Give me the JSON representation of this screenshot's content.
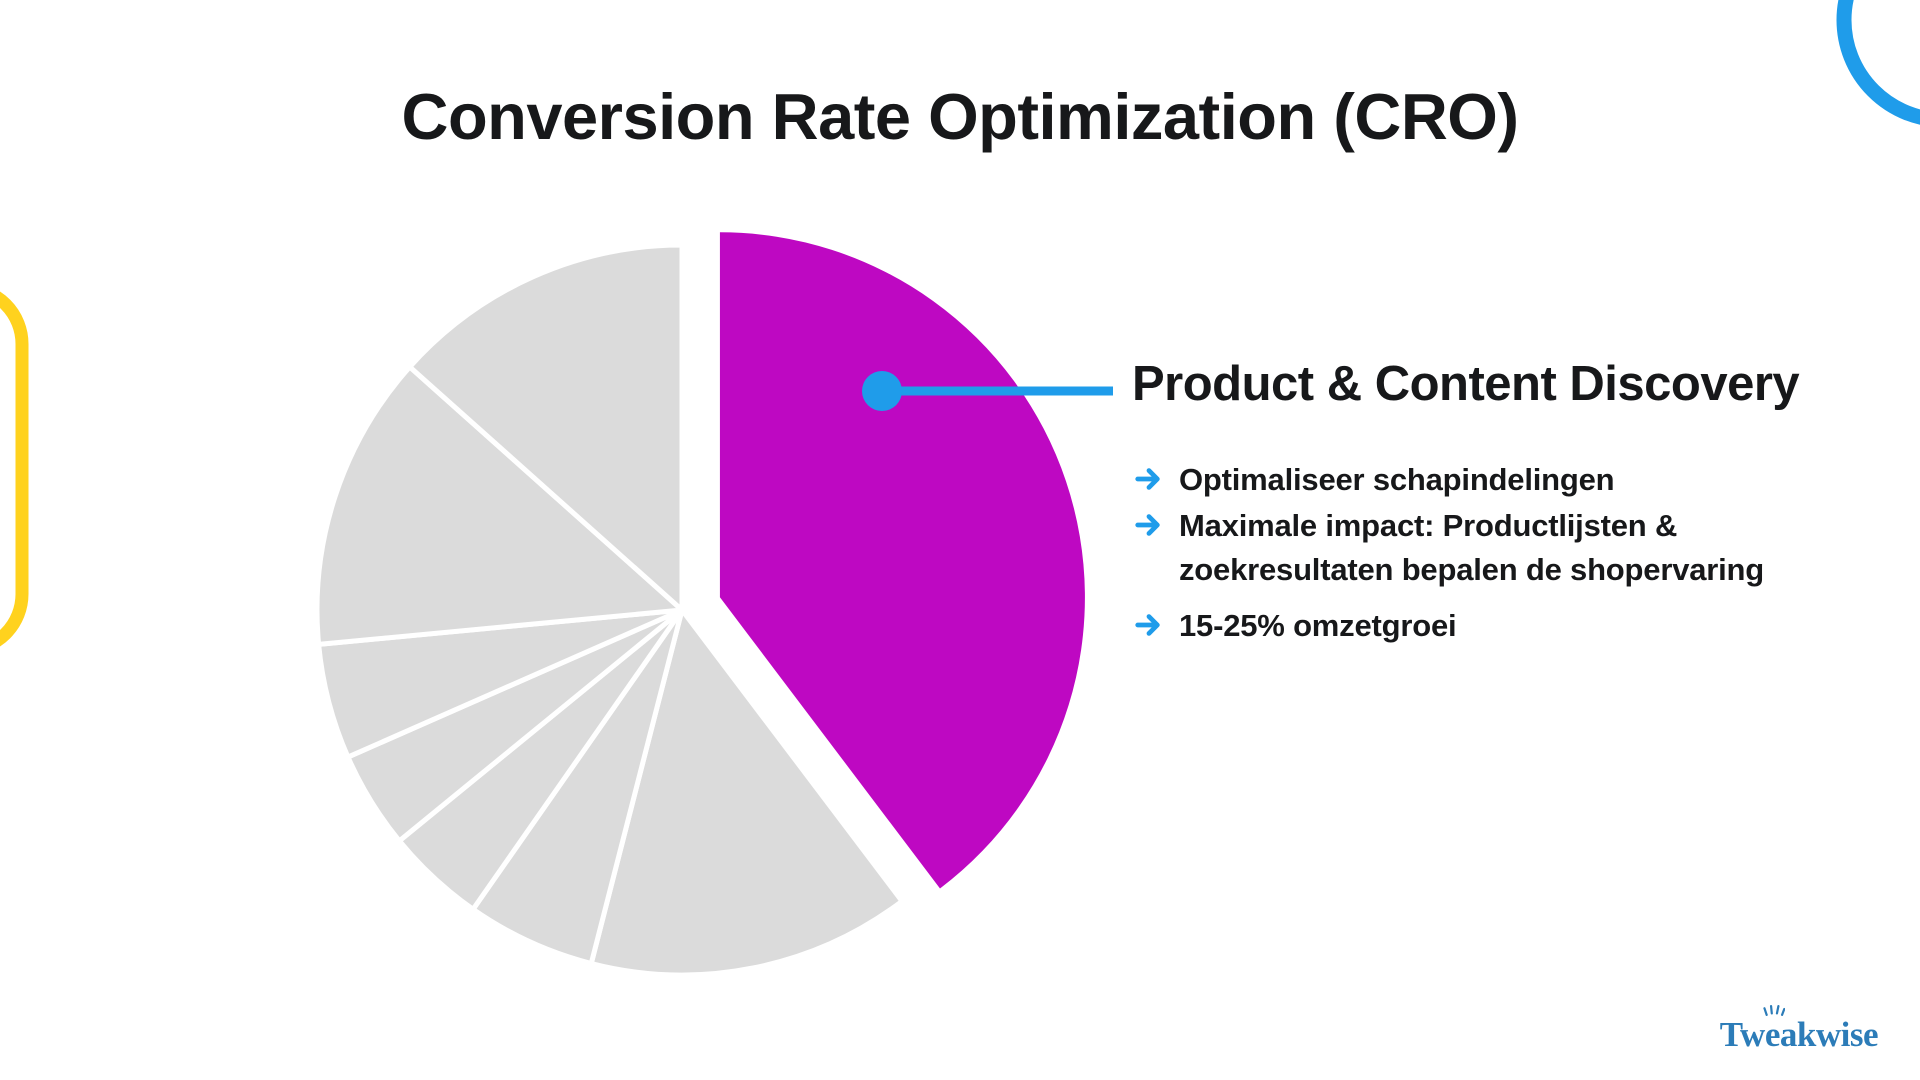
{
  "title": "Conversion Rate Optimization (CRO)",
  "callout": {
    "heading": "Product & Content Discovery",
    "bullets": [
      "Optimaliseer schapindelingen",
      "Maximale impact: Productlijsten & zoekresultaten bepalen de shopervaring",
      "15-25% omzetgroei"
    ],
    "bullet_icon": "arrow-right-icon"
  },
  "logo": {
    "text": "Tweakwise",
    "text_parts": [
      "Tw",
      "e",
      "akwise"
    ]
  },
  "colors": {
    "highlight_magenta": "#BE08C2",
    "slice_gray": "#DBDBDB",
    "accent_blue": "#1F9CEA",
    "logo_blue": "#2C7CB8",
    "deco_yellow": "#FFD21E",
    "text_dark": "#17181A",
    "background": "#FFFFFF"
  },
  "chart_data": {
    "type": "pie",
    "title": "Conversion Rate Optimization (CRO)",
    "start_angle_deg": 0,
    "direction": "clockwise",
    "legend": false,
    "slices": [
      {
        "label": "Product & Content Discovery",
        "value_pct": 39.7,
        "color": "#BE08C2",
        "exploded": true
      },
      {
        "label": "",
        "value_pct": 14.3,
        "color": "#DBDBDB",
        "exploded": false
      },
      {
        "label": "",
        "value_pct": 5.7,
        "color": "#DBDBDB",
        "exploded": false
      },
      {
        "label": "",
        "value_pct": 4.4,
        "color": "#DBDBDB",
        "exploded": false
      },
      {
        "label": "",
        "value_pct": 4.3,
        "color": "#DBDBDB",
        "exploded": false
      },
      {
        "label": "",
        "value_pct": 5.1,
        "color": "#DBDBDB",
        "exploded": false
      },
      {
        "label": "",
        "value_pct": 13.1,
        "color": "#DBDBDB",
        "exploded": false
      },
      {
        "label": "",
        "value_pct": 13.4,
        "color": "#DBDBDB",
        "exploded": false
      }
    ],
    "annotation": {
      "text": "Product & Content Discovery",
      "points_to_slice": 0
    }
  }
}
